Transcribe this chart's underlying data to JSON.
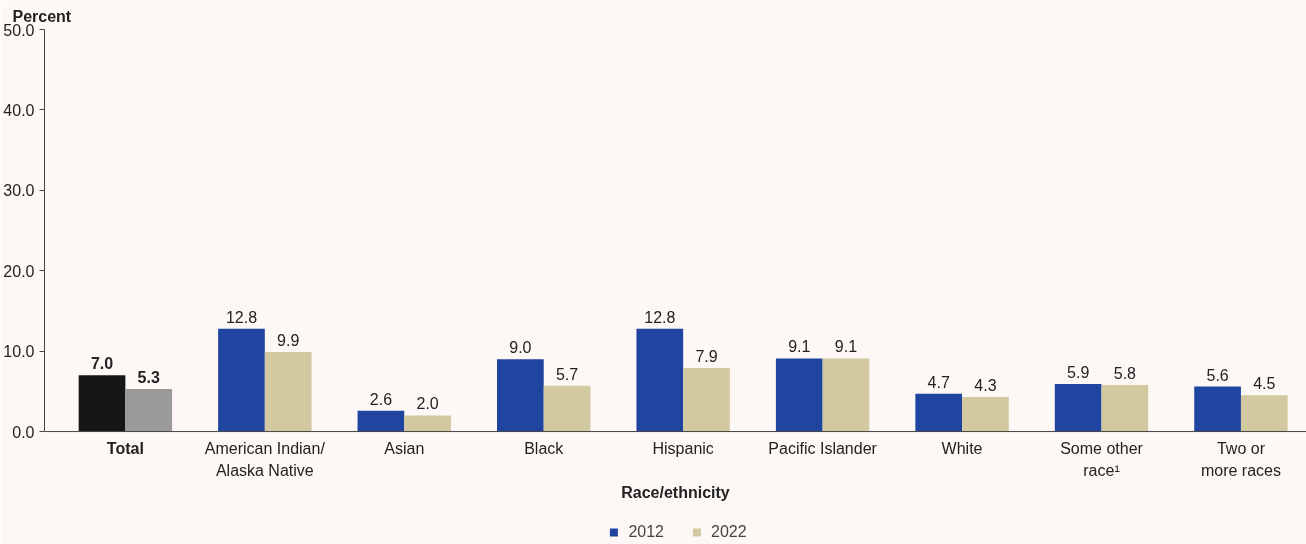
{
  "chart_data": {
    "type": "bar",
    "ylabel": "Percent",
    "xlabel": "Race/ethnicity",
    "categories": [
      "Total",
      "American Indian/\nAlaska Native",
      "Asian",
      "Black",
      "Hispanic",
      "Pacific Islander",
      "White",
      "Some other\nrace¹",
      "Two or\nmore races"
    ],
    "series": [
      {
        "name": "2012",
        "color": "#1f45a0",
        "colors": [
          "#161616",
          "#1f45a0",
          "#1f45a0",
          "#1f45a0",
          "#1f45a0",
          "#1f45a0",
          "#1f45a0",
          "#1f45a0",
          "#1f45a0"
        ],
        "values": [
          7.0,
          12.8,
          2.6,
          9.0,
          12.8,
          9.1,
          4.7,
          5.9,
          5.6
        ],
        "value_labels": [
          "7.0",
          "12.8",
          "2.6",
          "9.0",
          "12.8",
          "9.1",
          "4.7",
          "5.9",
          "5.6"
        ]
      },
      {
        "name": "2022",
        "color": "#d3c9a0",
        "colors": [
          "#9a9a9a",
          "#d3c9a0",
          "#d3c9a0",
          "#d3c9a0",
          "#d3c9a0",
          "#d3c9a0",
          "#d3c9a0",
          "#d3c9a0",
          "#d3c9a0"
        ],
        "values": [
          5.3,
          9.9,
          2.0,
          5.7,
          7.9,
          9.1,
          4.3,
          5.8,
          4.5
        ],
        "value_labels": [
          "5.3",
          "9.9",
          "2.0",
          "5.7",
          "7.9",
          "9.1",
          "4.3",
          "5.8",
          "4.5"
        ]
      }
    ],
    "ylim": [
      0,
      50
    ],
    "yticks": [
      {
        "value": 0,
        "label": "0.0"
      },
      {
        "value": 10,
        "label": "10.0"
      },
      {
        "value": 20,
        "label": "20.0"
      },
      {
        "value": 30,
        "label": "30.0"
      },
      {
        "value": 40,
        "label": "40.0"
      },
      {
        "value": 50,
        "label": "50.0"
      }
    ],
    "grid": false,
    "legend": "bottom"
  }
}
